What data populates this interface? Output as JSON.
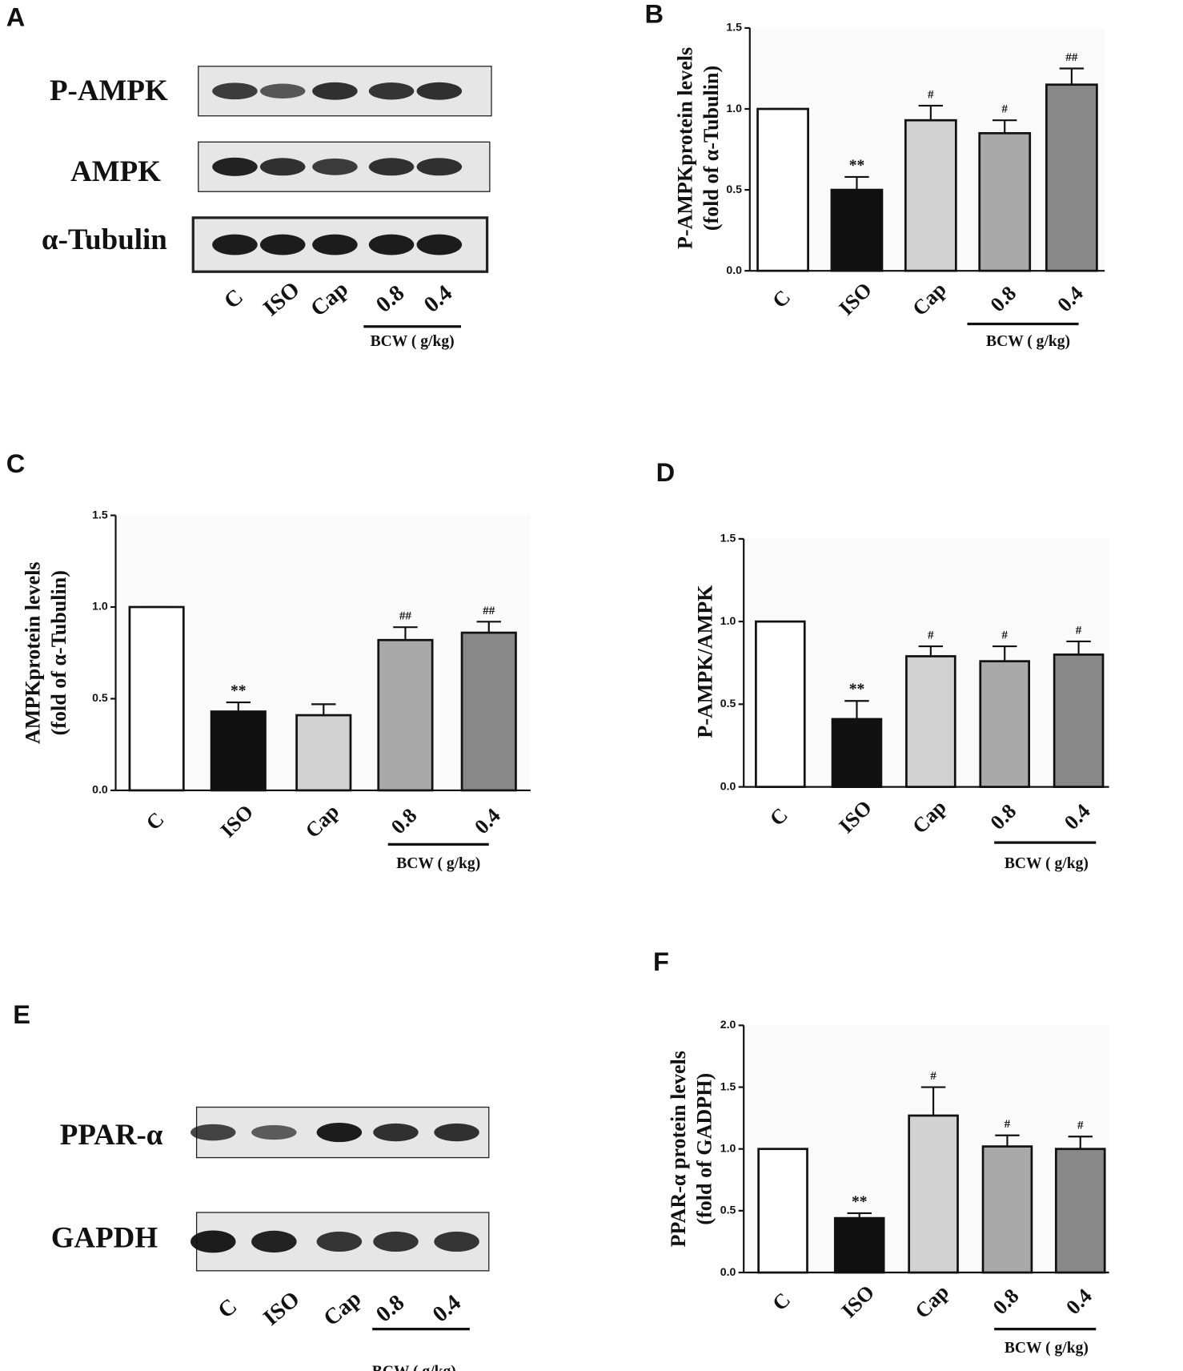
{
  "blots": [
    {
      "panel": "A",
      "rows": [
        "P-AMPK",
        "AMPK",
        "α-Tubulin"
      ],
      "lanes": [
        "C",
        "ISO",
        "Cap",
        "0.8",
        "0.4"
      ],
      "group_label": "BCW ( g/kg)"
    },
    {
      "panel": "E",
      "rows": [
        "PPAR-α",
        "GAPDH"
      ],
      "lanes": [
        "C",
        "ISO",
        "Cap",
        "0.8",
        "0.4"
      ],
      "group_label": "BCW ( g/kg)"
    }
  ],
  "chart_data": [
    {
      "type": "bar",
      "panel": "B",
      "y_label": [
        "P-AMPKprotein levels",
        "(fold of α-Tubulin)"
      ],
      "categories": [
        "C",
        "ISO",
        "Cap",
        "0.8",
        "0.4"
      ],
      "group_label": "BCW ( g/kg)",
      "values": [
        1.0,
        0.5,
        0.93,
        0.85,
        1.15
      ],
      "errors": [
        0,
        0.08,
        0.09,
        0.08,
        0.1
      ],
      "annotations": [
        null,
        "**",
        "#",
        "#",
        "##"
      ],
      "colors": [
        "#ffffff",
        "#111111",
        "#d2d2d2",
        "#a9a9a9",
        "#888888"
      ],
      "ylim": [
        0,
        1.5
      ],
      "yticks": [
        {
          "value": 0,
          "label": "0.0"
        },
        {
          "value": 0.5,
          "label": "0.5"
        },
        {
          "value": 1,
          "label": "1.0"
        },
        {
          "value": 1.5,
          "label": "1.5"
        }
      ]
    },
    {
      "type": "bar",
      "panel": "C",
      "y_label": [
        "AMPKprotein levels",
        "(fold of α-Tubulin)"
      ],
      "categories": [
        "C",
        "ISO",
        "Cap",
        "0.8",
        "0.4"
      ],
      "group_label": "BCW ( g/kg)",
      "values": [
        1.0,
        0.43,
        0.41,
        0.82,
        0.86
      ],
      "errors": [
        0,
        0.05,
        0.06,
        0.07,
        0.06
      ],
      "annotations": [
        null,
        "**",
        null,
        "##",
        "##"
      ],
      "colors": [
        "#ffffff",
        "#111111",
        "#d2d2d2",
        "#a9a9a9",
        "#888888"
      ],
      "ylim": [
        0,
        1.5
      ],
      "yticks": [
        {
          "value": 0,
          "label": "0.0"
        },
        {
          "value": 0.5,
          "label": "0.5"
        },
        {
          "value": 1,
          "label": "1.0"
        },
        {
          "value": 1.5,
          "label": "1.5"
        }
      ]
    },
    {
      "type": "bar",
      "panel": "D",
      "y_label": [
        "P-AMPK/AMPK"
      ],
      "categories": [
        "C",
        "ISO",
        "Cap",
        "0.8",
        "0.4"
      ],
      "group_label": "BCW ( g/kg)",
      "values": [
        1.0,
        0.41,
        0.79,
        0.76,
        0.8
      ],
      "errors": [
        0,
        0.11,
        0.06,
        0.09,
        0.08
      ],
      "annotations": [
        null,
        "**",
        "#",
        "#",
        "#"
      ],
      "colors": [
        "#ffffff",
        "#111111",
        "#d2d2d2",
        "#a9a9a9",
        "#888888"
      ],
      "ylim": [
        0,
        1.5
      ],
      "yticks": [
        {
          "value": 0,
          "label": "0.0"
        },
        {
          "value": 0.5,
          "label": "0.5"
        },
        {
          "value": 1,
          "label": "1.0"
        },
        {
          "value": 1.5,
          "label": "1.5"
        }
      ]
    },
    {
      "type": "bar",
      "panel": "F",
      "y_label": [
        "PPAR-α protein levels",
        "(fold of GADPH)"
      ],
      "categories": [
        "C",
        "ISO",
        "Cap",
        "0.8",
        "0.4"
      ],
      "group_label": "BCW ( g/kg)",
      "values": [
        1.0,
        0.44,
        1.27,
        1.02,
        1.0
      ],
      "errors": [
        0,
        0.04,
        0.23,
        0.09,
        0.1
      ],
      "annotations": [
        null,
        "**",
        "#",
        "#",
        "#"
      ],
      "colors": [
        "#ffffff",
        "#111111",
        "#d2d2d2",
        "#a9a9a9",
        "#888888"
      ],
      "ylim": [
        0,
        2
      ],
      "yticks": [
        {
          "value": 0,
          "label": "0.0"
        },
        {
          "value": 0.5,
          "label": "0.5"
        },
        {
          "value": 1,
          "label": "1.0"
        },
        {
          "value": 1.5,
          "label": "1.5"
        },
        {
          "value": 2,
          "label": "2.0"
        }
      ]
    }
  ]
}
